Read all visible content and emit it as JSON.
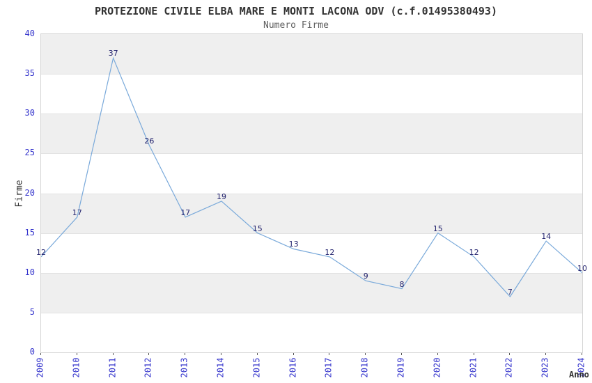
{
  "chart_data": {
    "type": "line",
    "title": "PROTEZIONE CIVILE ELBA MARE E MONTI LACONA ODV (c.f.01495380493)",
    "subtitle": "Numero Firme",
    "xlabel": "Anno",
    "ylabel": "Firme",
    "categories": [
      "2009",
      "2010",
      "2011",
      "2012",
      "2013",
      "2014",
      "2015",
      "2016",
      "2017",
      "2018",
      "2019",
      "2020",
      "2021",
      "2022",
      "2023",
      "2024"
    ],
    "series": [
      {
        "name": "Numero Firme",
        "values": [
          12,
          17,
          37,
          26,
          17,
          19,
          15,
          13,
          12,
          9,
          8,
          15,
          12,
          7,
          14,
          10
        ]
      }
    ],
    "point_labels": true,
    "ylim": [
      0,
      40
    ],
    "ytick_interval": 5,
    "yticks": [
      0,
      5,
      10,
      15,
      20,
      25,
      30,
      35,
      40
    ],
    "grid": "horizontal-bands",
    "legend": "none",
    "colors": {
      "line": "#79a9da",
      "point_label": "#23236e",
      "tick_label": "#3333cc",
      "band": "#efefef",
      "gridline": "#e2e2e2",
      "plot_border": "#d6d6d6",
      "title": "#333333",
      "subtitle": "#5f5f5f",
      "axis_title": "#333333",
      "background": "#ffffff"
    }
  }
}
